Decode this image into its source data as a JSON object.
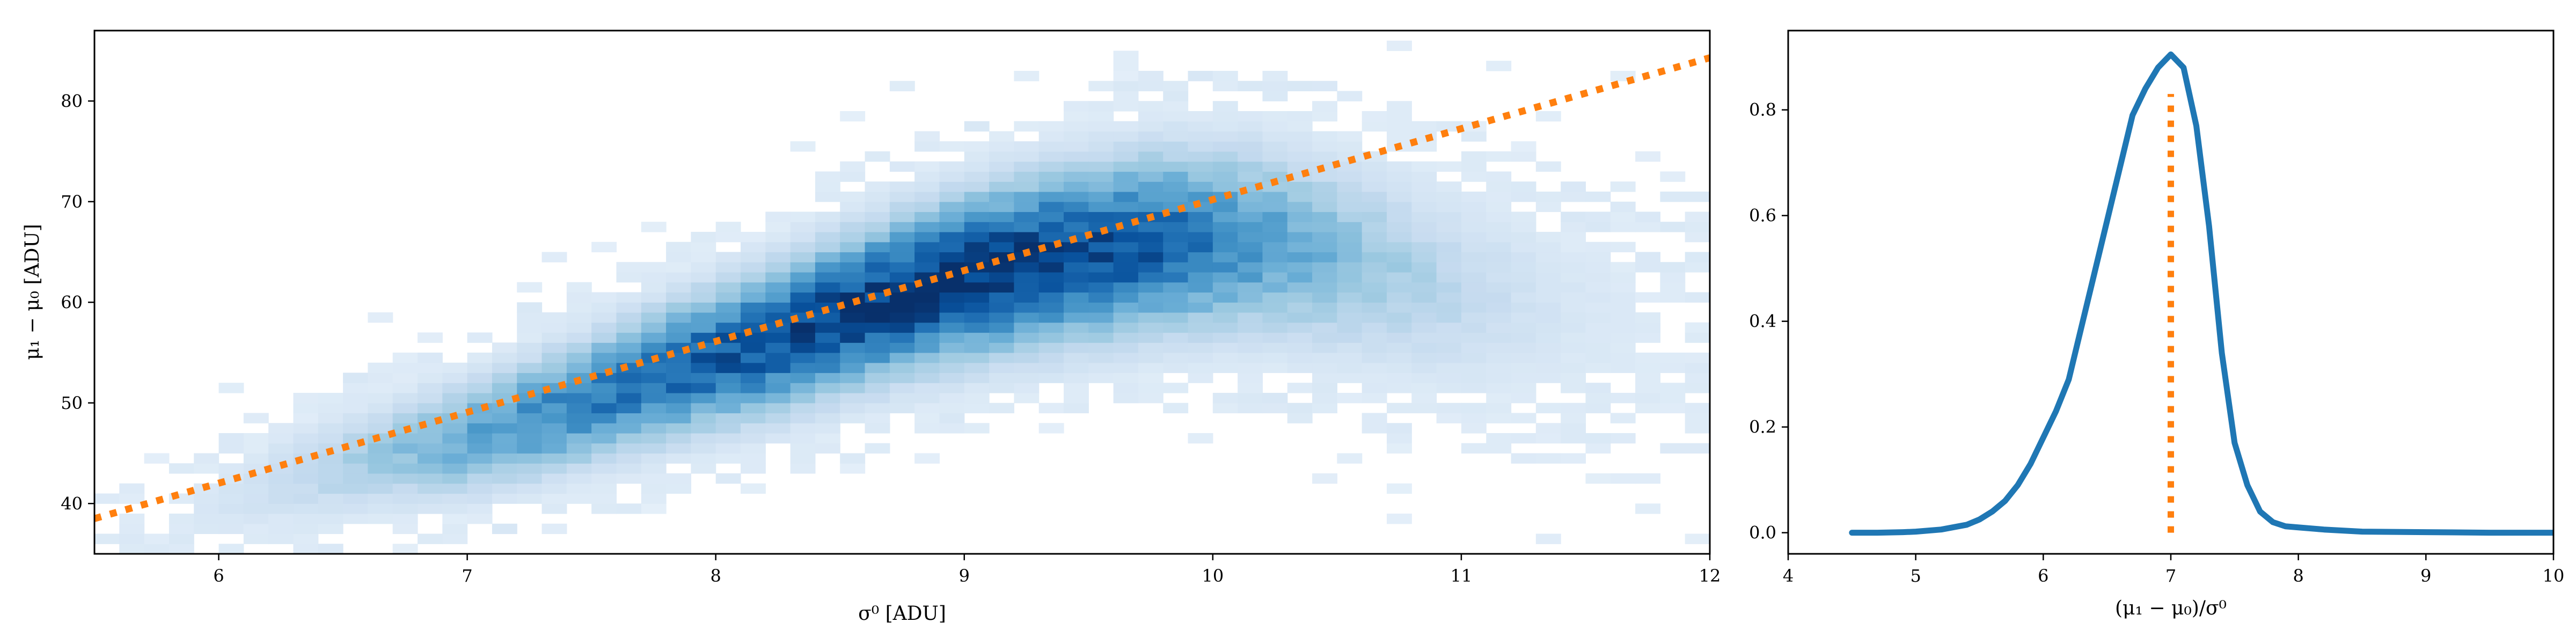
{
  "chart_data": [
    {
      "type": "heatmap",
      "title": "",
      "xlabel": "σ⁰ [ADU]",
      "ylabel": "μ₁ − μ₀ [ADU]",
      "xlim": [
        5.5,
        12
      ],
      "ylim": [
        35,
        87
      ],
      "xticks": [
        6,
        7,
        8,
        9,
        10,
        11,
        12
      ],
      "yticks": [
        40,
        50,
        60,
        70,
        80
      ],
      "grid": false,
      "colormap": "Blues",
      "density_ridge": {
        "x": [
          5.8,
          6.2,
          6.6,
          7.0,
          7.4,
          7.8,
          8.2,
          8.6,
          9.0,
          9.4,
          9.8,
          10.2,
          10.6,
          11.0,
          11.4,
          11.8
        ],
        "y": [
          37.5,
          42,
          44.5,
          46.5,
          49.5,
          53,
          56,
          59.5,
          62.5,
          64.5,
          66,
          66,
          64,
          61,
          59,
          58
        ],
        "relative_density": [
          0.05,
          0.15,
          0.3,
          0.5,
          0.65,
          0.78,
          0.88,
          0.96,
          1.0,
          0.95,
          0.8,
          0.55,
          0.35,
          0.2,
          0.1,
          0.05
        ]
      },
      "fit_line": {
        "style": "dotted",
        "color": "#ff7f0e",
        "x": [
          5.5,
          12
        ],
        "y": [
          38.5,
          84.3
        ]
      }
    },
    {
      "type": "line",
      "title": "",
      "xlabel": "(μ₁ − μ₀)/σ⁰",
      "ylabel": "",
      "xlim": [
        4,
        10
      ],
      "ylim": [
        -0.04,
        0.95
      ],
      "xticks": [
        4,
        5,
        6,
        7,
        8,
        9,
        10
      ],
      "yticks": [
        0.0,
        0.2,
        0.4,
        0.6,
        0.8
      ],
      "grid": false,
      "series": [
        {
          "color": "#1f77b4",
          "x": [
            4.5,
            4.7,
            4.9,
            5.0,
            5.2,
            5.4,
            5.5,
            5.6,
            5.7,
            5.8,
            5.9,
            6.0,
            6.1,
            6.2,
            6.3,
            6.4,
            6.5,
            6.6,
            6.7,
            6.8,
            6.9,
            7.0,
            7.1,
            7.2,
            7.3,
            7.4,
            7.5,
            7.6,
            7.7,
            7.8,
            7.9,
            8.0,
            8.2,
            8.5,
            9.0,
            9.5,
            10.0
          ],
          "y": [
            0.0,
            0.0,
            0.001,
            0.002,
            0.006,
            0.015,
            0.025,
            0.04,
            0.06,
            0.09,
            0.13,
            0.18,
            0.23,
            0.29,
            0.39,
            0.49,
            0.59,
            0.69,
            0.79,
            0.84,
            0.88,
            0.905,
            0.88,
            0.77,
            0.58,
            0.34,
            0.17,
            0.09,
            0.04,
            0.02,
            0.012,
            0.01,
            0.006,
            0.002,
            0.001,
            0.0,
            0.0
          ]
        }
      ],
      "marker_line": {
        "style": "dotted",
        "color": "#ff7f0e",
        "x": 7.0,
        "y": [
          0.0,
          0.83
        ]
      }
    }
  ]
}
